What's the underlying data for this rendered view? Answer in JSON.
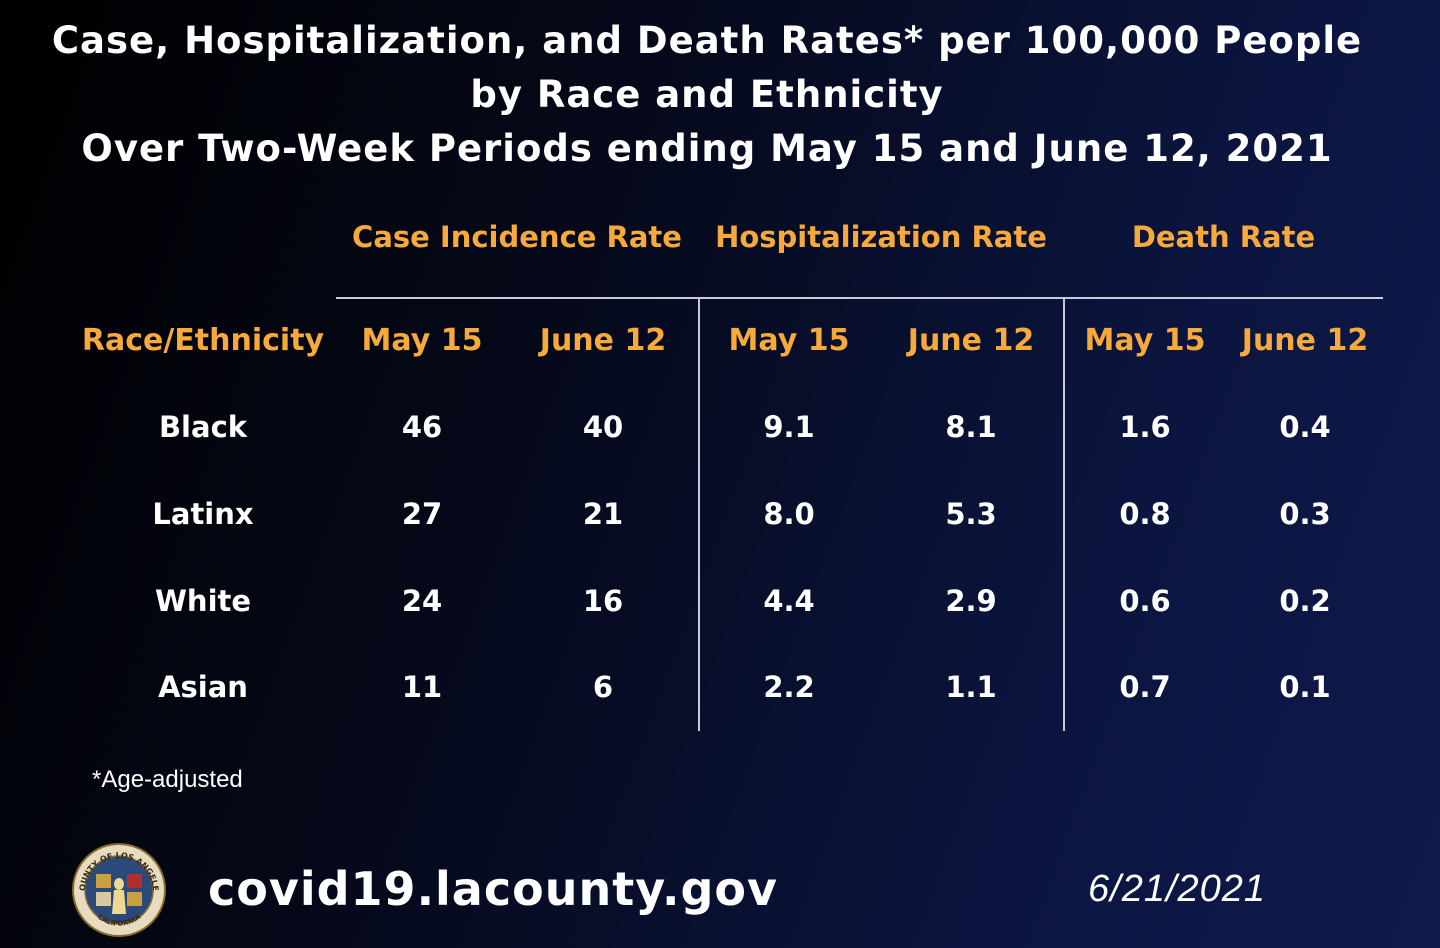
{
  "title": {
    "line1": "Case, Hospitalization, and Death Rates* per 100,000 People",
    "line2": "by Race and Ethnicity",
    "line3": "Over Two-Week Periods ending May 15 and June 12, 2021"
  },
  "table": {
    "row_header_label": "Race/Ethnicity",
    "groups": [
      "Case Incidence Rate",
      "Hospitalization Rate",
      "Death Rate"
    ],
    "periods": [
      "May 15",
      "June 12",
      "May 15",
      "June 12",
      "May 15",
      "June 12"
    ],
    "rows": [
      {
        "label": "Black",
        "values": [
          "46",
          "40",
          "9.1",
          "8.1",
          "1.6",
          "0.4"
        ]
      },
      {
        "label": "Latinx",
        "values": [
          "27",
          "21",
          "8.0",
          "5.3",
          "0.8",
          "0.3"
        ]
      },
      {
        "label": "White",
        "values": [
          "24",
          "16",
          "4.4",
          "2.9",
          "0.6",
          "0.2"
        ]
      },
      {
        "label": "Asian",
        "values": [
          "11",
          "6",
          "2.2",
          "1.1",
          "0.7",
          "0.1"
        ]
      }
    ]
  },
  "footnote": "*Age-adjusted",
  "footer": {
    "url": "covid19.lacounty.gov",
    "date": "6/21/2021",
    "seal_text_top": "COUNTY OF LOS ANGELES",
    "seal_text_bottom": "CALIFORNIA"
  },
  "colors": {
    "accent": "#f7a93b",
    "text": "#ffffff",
    "rule": "#c9ccd6"
  }
}
